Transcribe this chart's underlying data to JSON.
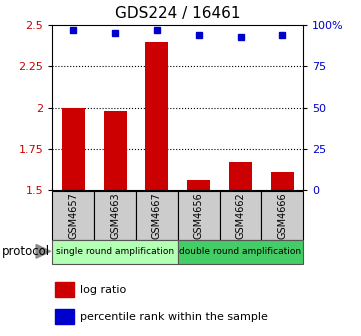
{
  "title": "GDS224 / 16461",
  "samples": [
    "GSM4657",
    "GSM4663",
    "GSM4667",
    "GSM4656",
    "GSM4662",
    "GSM4666"
  ],
  "log_ratio": [
    2.0,
    1.98,
    2.4,
    1.56,
    1.67,
    1.61
  ],
  "percentile_rank": [
    97,
    95,
    97,
    94,
    93,
    94
  ],
  "ylim_left": [
    1.5,
    2.5
  ],
  "ylim_right": [
    0,
    100
  ],
  "yticks_left": [
    1.5,
    1.75,
    2.0,
    2.25,
    2.5
  ],
  "ytick_labels_left": [
    "1.5",
    "1.75",
    "2",
    "2.25",
    "2.5"
  ],
  "yticks_right": [
    0,
    25,
    50,
    75,
    100
  ],
  "ytick_labels_right": [
    "0",
    "25",
    "50",
    "75",
    "100%"
  ],
  "bar_color": "#cc0000",
  "dot_color": "#0000cc",
  "bg_color": "#ffffff",
  "protocol_group1_color": "#b3ffb3",
  "protocol_group2_color": "#44cc66",
  "xlabel_bg": "#cccccc",
  "tick_label_color_left": "#cc0000",
  "tick_label_color_right": "#0000cc",
  "protocol_label": "protocol",
  "protocol_group1_label": "single round amplification",
  "protocol_group2_label": "double round amplification",
  "legend_log_ratio": "log ratio",
  "legend_percentile": "percentile rank within the sample",
  "grid_dotted_yticks": [
    1.75,
    2.0,
    2.25
  ],
  "title_fontsize": 11
}
